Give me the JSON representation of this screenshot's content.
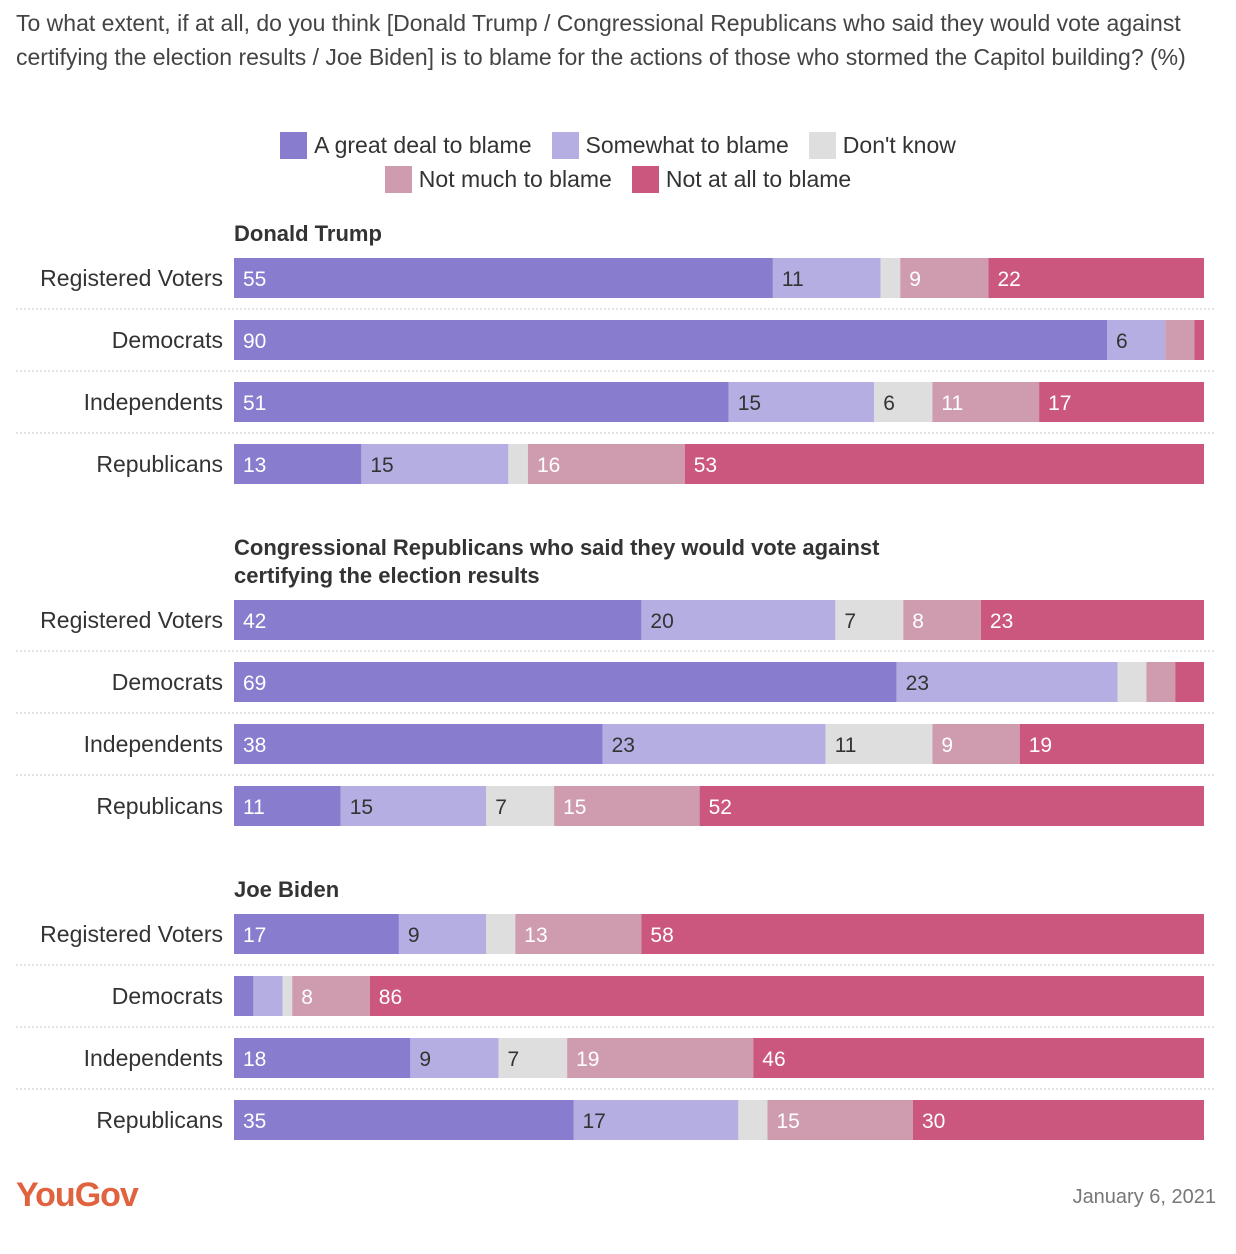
{
  "question": "To what extent, if at all, do you think [Donald Trump / Congressional Republicans who said they would vote against certifying the election results / Joe Biden] is to blame for the actions of those who stormed the Capitol building? (%)",
  "colors": {
    "great_deal": "#877cce",
    "somewhat": "#b5aee2",
    "dont_know": "#dedede",
    "not_much": "#cf9caf",
    "not_at_all": "#cb577e"
  },
  "legend": [
    {
      "key": "great_deal",
      "label": "A great deal to blame"
    },
    {
      "key": "somewhat",
      "label": "Somewhat to blame"
    },
    {
      "key": "dont_know",
      "label": "Don't know"
    },
    {
      "key": "not_much",
      "label": "Not much to blame"
    },
    {
      "key": "not_at_all",
      "label": "Not at all to blame"
    }
  ],
  "chart_data": {
    "type": "bar",
    "orientation": "horizontal",
    "stacked": true,
    "xlim": [
      0,
      100
    ],
    "series_order": [
      "A great deal to blame",
      "Somewhat to blame",
      "Don't know",
      "Not much to blame",
      "Not at all to blame"
    ],
    "panels": [
      {
        "title": "Donald Trump",
        "rows": [
          {
            "label": "Registered Voters",
            "values": [
              55,
              11,
              2,
              9,
              22
            ]
          },
          {
            "label": "Democrats",
            "values": [
              90,
              6,
              0,
              3,
              1
            ]
          },
          {
            "label": "Independents",
            "values": [
              51,
              15,
              6,
              11,
              17
            ]
          },
          {
            "label": "Republicans",
            "values": [
              13,
              15,
              2,
              16,
              53
            ]
          }
        ]
      },
      {
        "title": "Congressional Republicans who said they would vote against certifying the election results",
        "rows": [
          {
            "label": "Registered Voters",
            "values": [
              42,
              20,
              7,
              8,
              23
            ]
          },
          {
            "label": "Democrats",
            "values": [
              69,
              23,
              3,
              3,
              3
            ]
          },
          {
            "label": "Independents",
            "values": [
              38,
              23,
              11,
              9,
              19
            ]
          },
          {
            "label": "Republicans",
            "values": [
              11,
              15,
              7,
              15,
              52
            ]
          }
        ]
      },
      {
        "title": "Joe Biden",
        "rows": [
          {
            "label": "Registered Voters",
            "values": [
              17,
              9,
              3,
              13,
              58
            ]
          },
          {
            "label": "Democrats",
            "values": [
              2,
              3,
              1,
              8,
              86
            ]
          },
          {
            "label": "Independents",
            "values": [
              18,
              9,
              7,
              19,
              46
            ]
          },
          {
            "label": "Republicans",
            "values": [
              35,
              17,
              3,
              15,
              30
            ]
          }
        ]
      }
    ]
  },
  "footer": {
    "logo": "YouGov",
    "date": "January 6, 2021"
  }
}
